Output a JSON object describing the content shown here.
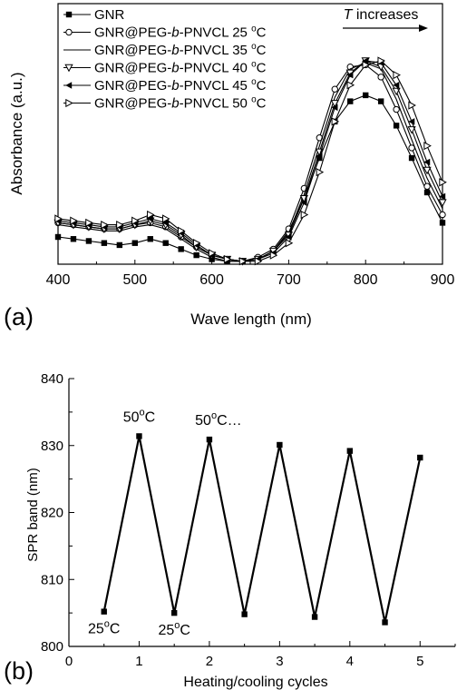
{
  "chart_data": [
    {
      "type": "line",
      "panel_label": "(a)",
      "xlabel": "Wave length (nm)",
      "ylabel": "Absorbance (a.u.)",
      "xlim": [
        400,
        900
      ],
      "ylim": [
        0,
        1
      ],
      "x_ticks": [
        "400",
        "500",
        "600",
        "700",
        "800",
        "900"
      ],
      "y_ticks_shown": false,
      "legend_position": "top-left",
      "annotation": {
        "italic": "T",
        "text": " increases"
      },
      "series": [
        {
          "name": "GNR",
          "marker": "filled-square",
          "x": [
            400,
            420,
            440,
            460,
            480,
            500,
            520,
            540,
            560,
            580,
            600,
            620,
            640,
            660,
            680,
            700,
            720,
            740,
            760,
            780,
            800,
            820,
            840,
            860,
            880,
            900
          ],
          "y": [
            0.13,
            0.12,
            0.11,
            0.1,
            0.09,
            0.1,
            0.12,
            0.1,
            0.07,
            0.04,
            0.02,
            0.01,
            0.01,
            0.02,
            0.06,
            0.16,
            0.32,
            0.52,
            0.7,
            0.8,
            0.83,
            0.8,
            0.68,
            0.52,
            0.35,
            0.2
          ]
        },
        {
          "name": "GNR@PEG-b-PNVCL 25 °C",
          "marker": "open-circle",
          "x": [
            400,
            420,
            440,
            460,
            480,
            500,
            520,
            540,
            560,
            580,
            600,
            620,
            640,
            660,
            680,
            700,
            720,
            740,
            760,
            780,
            800,
            820,
            840,
            860,
            880,
            900
          ],
          "y": [
            0.2,
            0.19,
            0.18,
            0.17,
            0.17,
            0.19,
            0.2,
            0.18,
            0.13,
            0.08,
            0.04,
            0.02,
            0.01,
            0.03,
            0.07,
            0.17,
            0.37,
            0.62,
            0.86,
            0.97,
            0.98,
            0.92,
            0.76,
            0.57,
            0.38,
            0.24
          ]
        },
        {
          "name": "GNR@PEG-b-PNVCL 35 °C",
          "marker": "none",
          "x": [
            400,
            420,
            440,
            460,
            480,
            500,
            520,
            540,
            560,
            580,
            600,
            620,
            640,
            660,
            680,
            700,
            720,
            740,
            760,
            780,
            800,
            820,
            840,
            860,
            880,
            900
          ],
          "y": [
            0.19,
            0.18,
            0.17,
            0.16,
            0.16,
            0.18,
            0.19,
            0.17,
            0.12,
            0.07,
            0.03,
            0.01,
            0.01,
            0.02,
            0.06,
            0.15,
            0.34,
            0.58,
            0.82,
            0.96,
            0.99,
            0.96,
            0.81,
            0.61,
            0.42,
            0.27
          ]
        },
        {
          "name": "GNR@PEG-b-PNVCL 40 °C",
          "marker": "open-triangle-down",
          "x": [
            400,
            420,
            440,
            460,
            480,
            500,
            520,
            540,
            560,
            580,
            600,
            620,
            640,
            660,
            680,
            700,
            720,
            740,
            760,
            780,
            800,
            820,
            840,
            860,
            880,
            900
          ],
          "y": [
            0.2,
            0.19,
            0.18,
            0.17,
            0.17,
            0.19,
            0.21,
            0.19,
            0.14,
            0.08,
            0.04,
            0.02,
            0.01,
            0.02,
            0.06,
            0.14,
            0.32,
            0.55,
            0.79,
            0.94,
            1.0,
            0.97,
            0.85,
            0.66,
            0.46,
            0.3
          ]
        },
        {
          "name": "GNR@PEG-b-PNVCL 45 °C",
          "marker": "filled-triangle-left",
          "x": [
            400,
            420,
            440,
            460,
            480,
            500,
            520,
            540,
            560,
            580,
            600,
            620,
            640,
            660,
            680,
            700,
            720,
            740,
            760,
            780,
            800,
            820,
            840,
            860,
            880,
            900
          ],
          "y": [
            0.21,
            0.2,
            0.19,
            0.18,
            0.18,
            0.2,
            0.22,
            0.2,
            0.15,
            0.09,
            0.04,
            0.02,
            0.01,
            0.02,
            0.05,
            0.13,
            0.3,
            0.53,
            0.77,
            0.93,
            1.0,
            0.99,
            0.88,
            0.7,
            0.5,
            0.33
          ]
        },
        {
          "name": "GNR@PEG-b-PNVCL 50 °C",
          "marker": "open-triangle-right",
          "x": [
            400,
            420,
            440,
            460,
            480,
            500,
            520,
            540,
            560,
            580,
            600,
            620,
            640,
            660,
            680,
            700,
            720,
            740,
            760,
            780,
            800,
            820,
            840,
            860,
            880,
            900
          ],
          "y": [
            0.22,
            0.21,
            0.2,
            0.19,
            0.19,
            0.21,
            0.24,
            0.22,
            0.16,
            0.1,
            0.05,
            0.02,
            0.01,
            0.01,
            0.04,
            0.1,
            0.24,
            0.45,
            0.7,
            0.88,
            0.98,
            1.0,
            0.93,
            0.78,
            0.58,
            0.4
          ]
        }
      ]
    },
    {
      "type": "line",
      "panel_label": "(b)",
      "xlabel": "Heating/cooling cycles",
      "ylabel": "SPR band (nm)",
      "xlim": [
        0,
        5.5
      ],
      "ylim": [
        800,
        840
      ],
      "x_ticks": [
        0,
        1,
        2,
        3,
        4,
        5
      ],
      "y_ticks": [
        800,
        810,
        820,
        830,
        840
      ],
      "series": [
        {
          "marker": "filled-square",
          "x": [
            0.5,
            1,
            1.5,
            2,
            2.5,
            3,
            3.5,
            4,
            4.5,
            5
          ],
          "y": [
            805.2,
            831.4,
            805.0,
            830.9,
            804.8,
            830.1,
            804.4,
            829.2,
            803.6,
            828.2
          ]
        }
      ],
      "annotations": [
        {
          "base": "50",
          "sup": "o",
          "tail": "C",
          "x": 1,
          "y": 831.4
        },
        {
          "base": "50",
          "sup": "o",
          "tail": "C…",
          "x": 2,
          "y": 830.9
        },
        {
          "base": "25",
          "sup": "o",
          "tail": "C",
          "x": 0.5,
          "y": 805.2
        },
        {
          "base": "25",
          "sup": "o",
          "tail": "C",
          "x": 1.5,
          "y": 805.0
        }
      ]
    }
  ]
}
